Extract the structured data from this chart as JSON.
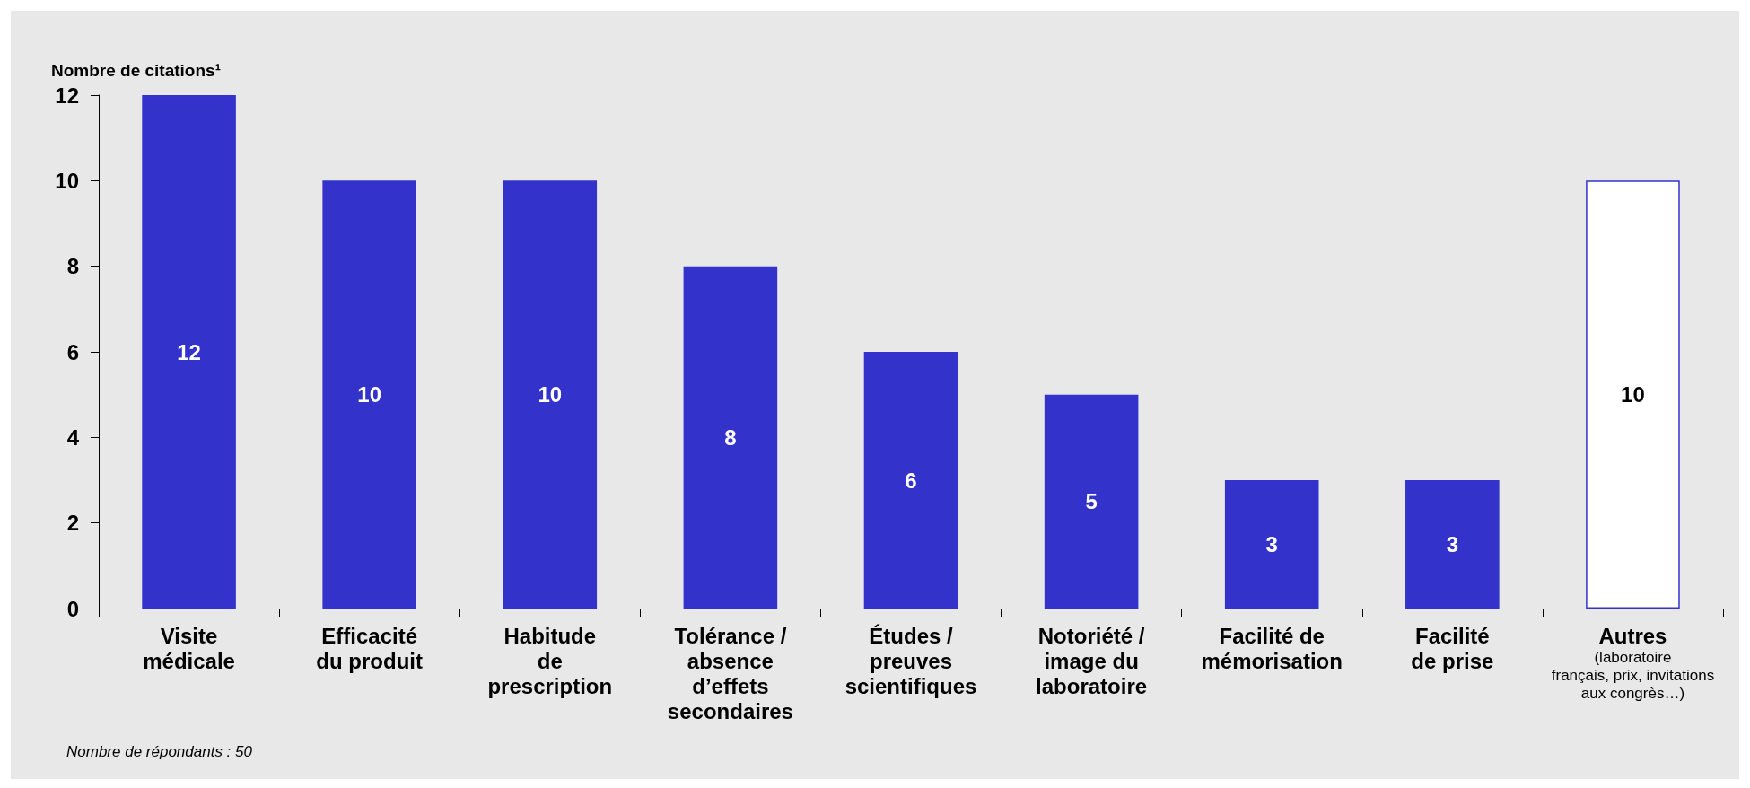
{
  "chart_data": {
    "type": "bar",
    "ylabel": "Nombre de citations¹",
    "categories": [
      "Visite\nmédicale",
      "Efficacité\ndu produit",
      "Habitude\nde\nprescription",
      "Tolérance /\nabsence\nd’effets\nsecondaires",
      "Études /\npreuves\nscientifiques",
      "Notoriété /\nimage du\nlaboratoire",
      "Facilité de\nmémorisation",
      "Facilité\nde prise",
      "Autres\n(laboratoire\nfrançais, prix, invitations\naux congrès…)"
    ],
    "values": [
      12,
      10,
      10,
      8,
      6,
      5,
      3,
      3,
      10
    ],
    "colors": [
      "#3333cc",
      "#3333cc",
      "#3333cc",
      "#3333cc",
      "#3333cc",
      "#3333cc",
      "#3333cc",
      "#3333cc",
      "#ffffff"
    ],
    "ylim": [
      0,
      12
    ],
    "yticks": [
      0,
      2,
      4,
      6,
      8,
      10,
      12
    ],
    "grid": false,
    "data_labels": true,
    "annotations": [
      "Nombre de répondants : 50"
    ]
  }
}
